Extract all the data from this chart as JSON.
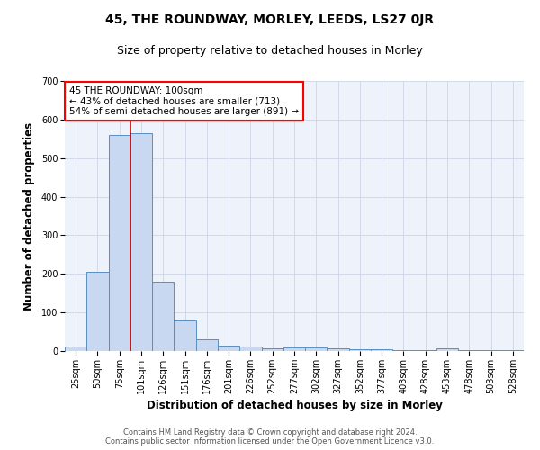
{
  "title": "45, THE ROUNDWAY, MORLEY, LEEDS, LS27 0JR",
  "subtitle": "Size of property relative to detached houses in Morley",
  "xlabel": "Distribution of detached houses by size in Morley",
  "ylabel": "Number of detached properties",
  "footer_line1": "Contains HM Land Registry data © Crown copyright and database right 2024.",
  "footer_line2": "Contains public sector information licensed under the Open Government Licence v3.0.",
  "annotation_line1": "45 THE ROUNDWAY: 100sqm",
  "annotation_line2": "← 43% of detached houses are smaller (713)",
  "annotation_line3": "54% of semi-detached houses are larger (891) →",
  "bin_labels": [
    "25sqm",
    "50sqm",
    "75sqm",
    "101sqm",
    "126sqm",
    "151sqm",
    "176sqm",
    "201sqm",
    "226sqm",
    "252sqm",
    "277sqm",
    "302sqm",
    "327sqm",
    "352sqm",
    "377sqm",
    "403sqm",
    "428sqm",
    "453sqm",
    "478sqm",
    "503sqm",
    "528sqm"
  ],
  "bin_values": [
    12,
    205,
    560,
    565,
    180,
    80,
    30,
    14,
    12,
    6,
    10,
    10,
    8,
    5,
    5,
    3,
    3,
    7,
    2,
    2,
    2
  ],
  "bar_color": "#c8d8f0",
  "bar_edge_color": "#5a8fc0",
  "property_line_color": "#cc0000",
  "property_line_bin": 3,
  "ylim": [
    0,
    700
  ],
  "yticks": [
    0,
    100,
    200,
    300,
    400,
    500,
    600,
    700
  ],
  "background_color": "#eef2fb",
  "grid_color": "#c8cfe0",
  "title_fontsize": 10,
  "subtitle_fontsize": 9,
  "axis_label_fontsize": 8.5,
  "tick_fontsize": 7,
  "footer_fontsize": 6,
  "annotation_fontsize": 7.5
}
